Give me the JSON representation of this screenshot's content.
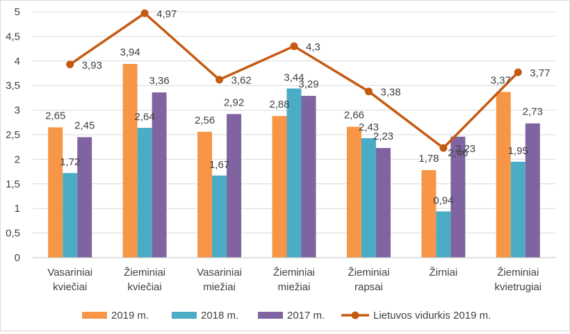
{
  "chart_data": {
    "type": "bar",
    "title": "",
    "xlabel": "",
    "ylabel": "",
    "ylim": [
      0,
      5
    ],
    "yticks": [
      "0",
      "0,5",
      "1",
      "1,5",
      "2",
      "2,5",
      "3",
      "3,5",
      "4",
      "4,5",
      "5"
    ],
    "ytick_values": [
      0,
      0.5,
      1,
      1.5,
      2,
      2.5,
      3,
      3.5,
      4,
      4.5,
      5
    ],
    "grid": true,
    "legend_position": "bottom",
    "categories": [
      [
        "Vasariniai",
        "kviečiai"
      ],
      [
        "Žieminiai",
        "kviečiai"
      ],
      [
        "Vasariniai",
        "miežiai"
      ],
      [
        "Žieminiai",
        "miežiai"
      ],
      [
        "Žieminiai",
        "rapsai"
      ],
      [
        "Žirniai"
      ],
      [
        "Žieminiai",
        "kvietrugiai"
      ]
    ],
    "series": [
      {
        "name": "2019 m.",
        "type": "bar",
        "color": "#f79646",
        "values": [
          2.65,
          3.94,
          2.56,
          2.88,
          2.66,
          1.78,
          3.37
        ],
        "labels": [
          "2,65",
          "3,94",
          "2,56",
          "2,88",
          "2,66",
          "1,78",
          "3,37"
        ]
      },
      {
        "name": "2018 m.",
        "type": "bar",
        "color": "#4bacc6",
        "values": [
          1.72,
          2.64,
          1.67,
          3.44,
          2.43,
          0.94,
          1.95
        ],
        "labels": [
          "1,72",
          "2,64",
          "1,67",
          "3,44",
          "2,43",
          "0,94",
          "1,95"
        ]
      },
      {
        "name": "2017 m.",
        "type": "bar",
        "color": "#8064a2",
        "values": [
          2.45,
          3.36,
          2.92,
          3.29,
          2.23,
          2.46,
          2.73
        ],
        "labels": [
          "2,45",
          "3,36",
          "2,92",
          "3,29",
          "2,23",
          "2,46",
          "2,73"
        ]
      },
      {
        "name": "Lietuvos vidurkis 2019 m.",
        "type": "line",
        "color": "#c55a11",
        "values": [
          3.93,
          4.97,
          3.62,
          4.3,
          3.38,
          2.23,
          3.77
        ],
        "labels": [
          "3,93",
          "4,97",
          "3,62",
          "4,3",
          "3,38",
          "2,23",
          "3,77"
        ]
      }
    ]
  }
}
